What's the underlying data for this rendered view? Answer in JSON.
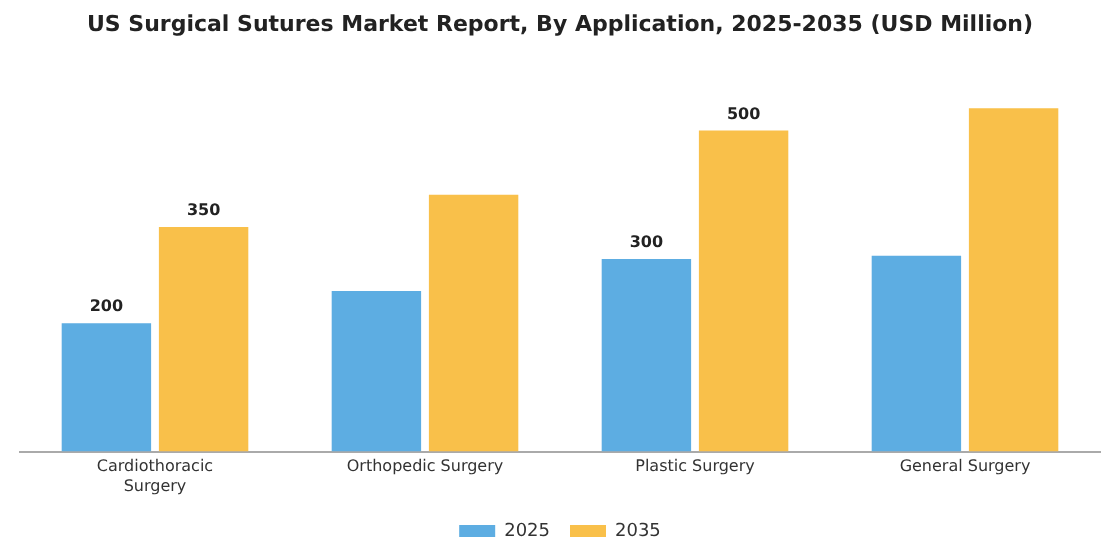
{
  "chart_data": {
    "type": "bar",
    "title": "US Surgical Sutures Market Report, By Application, 2025-2035 (USD Million)",
    "categories": [
      "Cardiothoracic Surgery",
      "Orthopedic Surgery",
      "Plastic Surgery",
      "General Surgery"
    ],
    "series": [
      {
        "name": "2025",
        "color": "#5dade2",
        "values": [
          200,
          250,
          300,
          305
        ],
        "value_labels": [
          "200",
          null,
          "300",
          null
        ]
      },
      {
        "name": "2035",
        "color": "#f9c04a",
        "values": [
          350,
          400,
          500,
          535
        ],
        "value_labels": [
          "350",
          null,
          "500",
          null
        ]
      }
    ],
    "grid": false,
    "legend": "bottom"
  }
}
